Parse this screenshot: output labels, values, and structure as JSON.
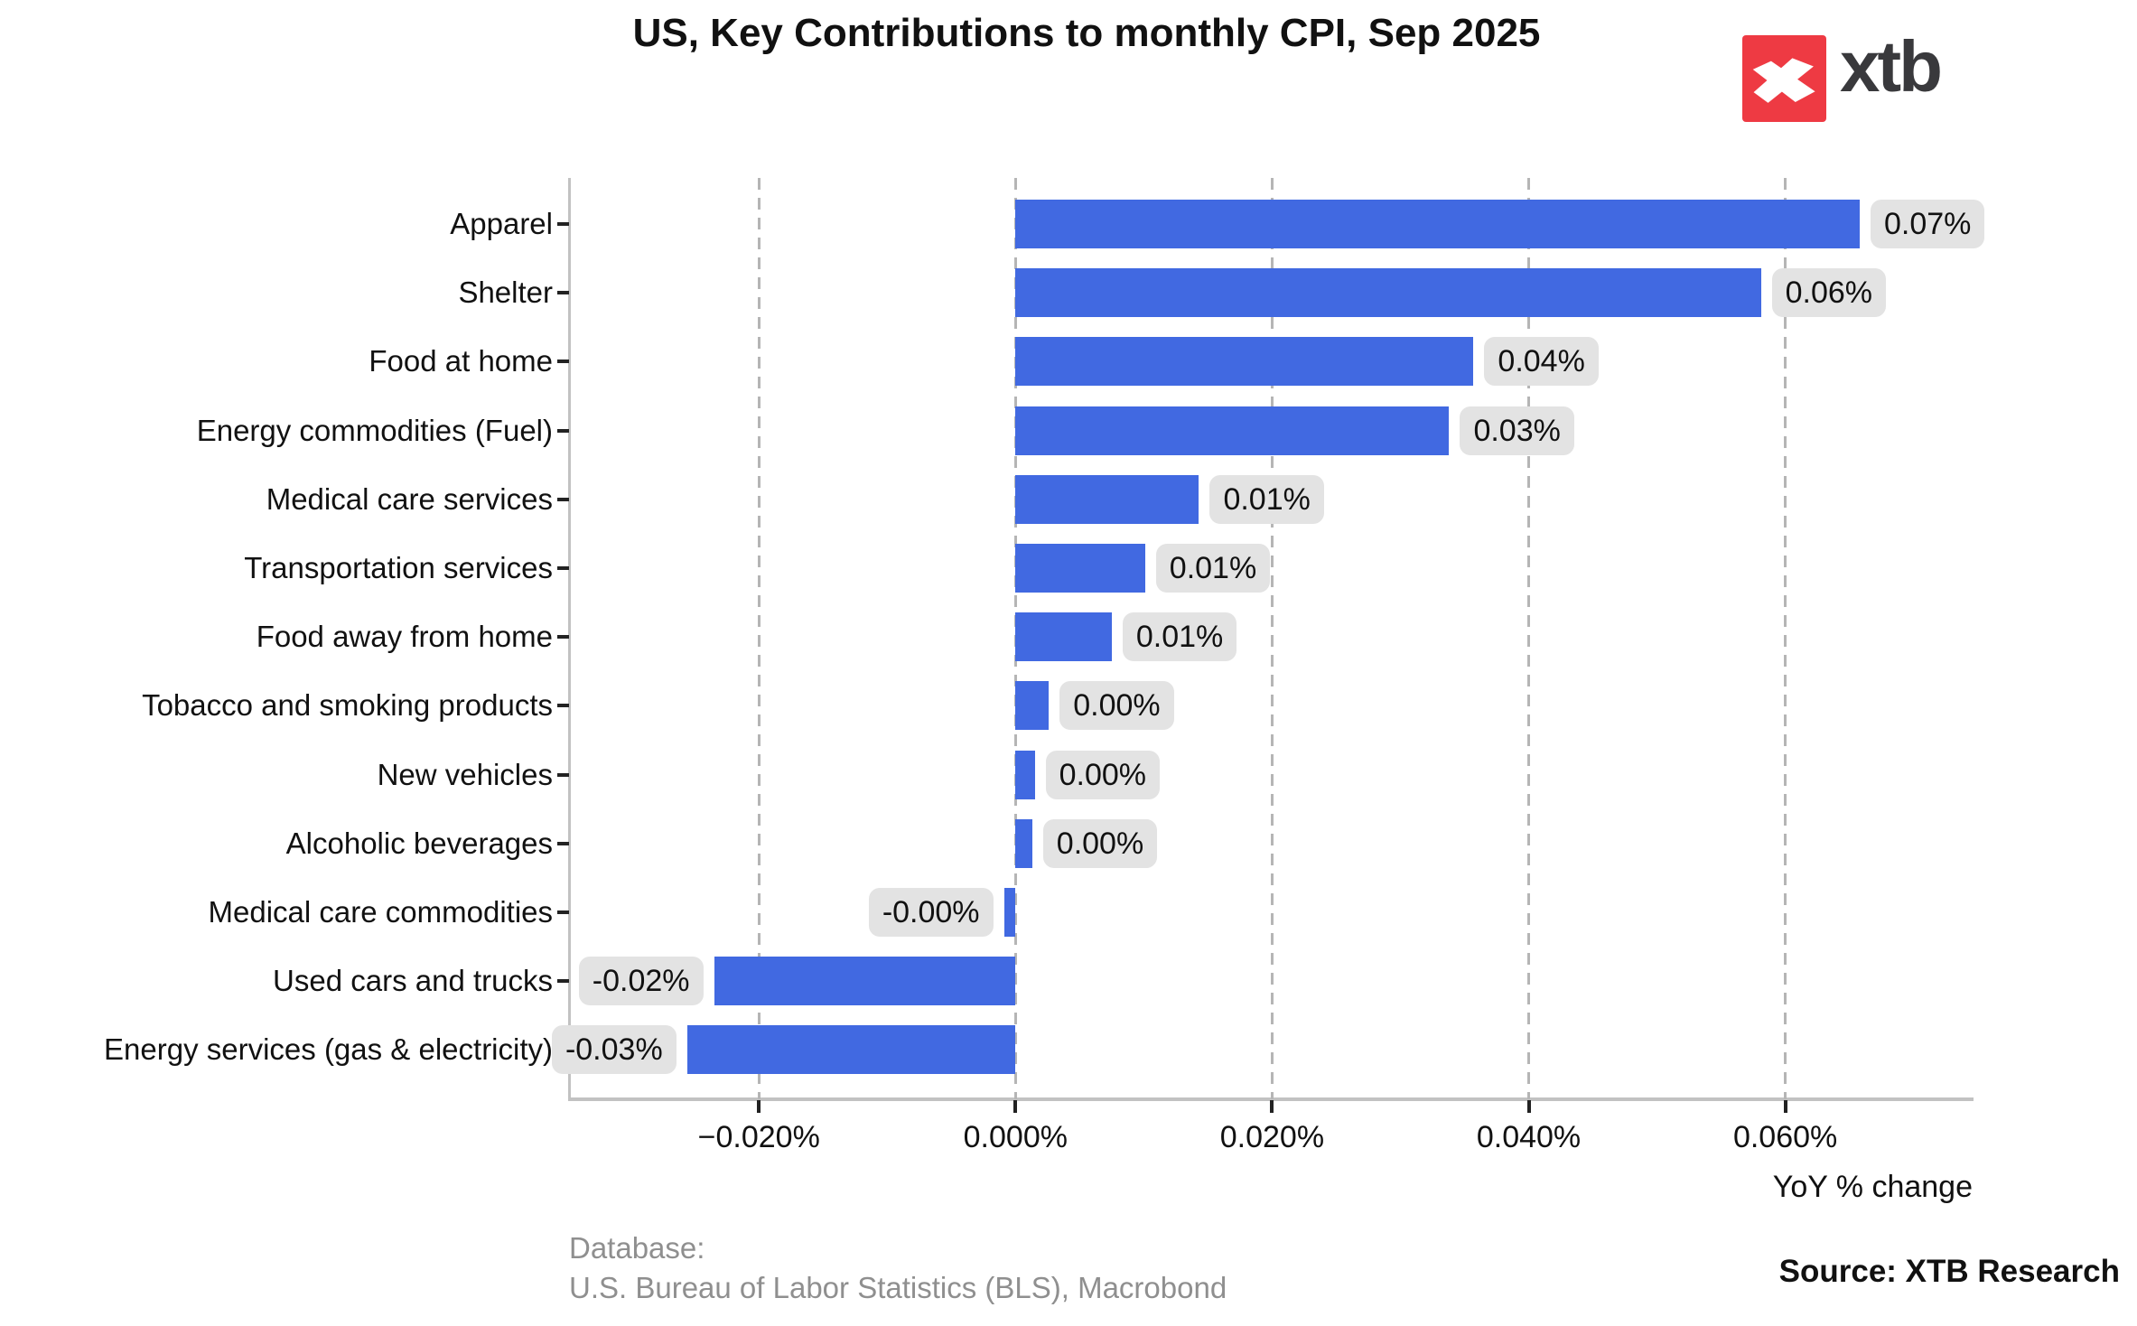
{
  "title": "US, Key Contributions to monthly CPI, Sep 2025",
  "logo": {
    "text": "xtb",
    "icon": "x-mark-icon",
    "red": "#ee3a43",
    "text_color": "#39393c"
  },
  "chart_data": {
    "type": "bar",
    "orientation": "horizontal",
    "title": "US, Key Contributions to monthly CPI, Sep 2025",
    "categories": [
      "Apparel",
      "Shelter",
      "Food at home",
      "Energy commodities (Fuel)",
      "Medical care services",
      "Transportation services",
      "Food away from home",
      "Tobacco and smoking products",
      "New vehicles",
      "Alcoholic beverages",
      "Medical care commodities",
      "Used cars and trucks",
      "Energy services (gas & electricity)"
    ],
    "values": [
      0.0658,
      0.0581,
      0.0357,
      0.0338,
      0.0143,
      0.0101,
      0.0075,
      0.0026,
      0.0015,
      0.0013,
      -0.0009,
      -0.0235,
      -0.0256
    ],
    "bar_labels": [
      "0.07%",
      "0.06%",
      "0.04%",
      "0.03%",
      "0.01%",
      "0.01%",
      "0.01%",
      "0.00%",
      "0.00%",
      "0.00%",
      "-0.00%",
      "-0.02%",
      "-0.03%"
    ],
    "x_ticks": {
      "values": [
        -0.02,
        0.0,
        0.02,
        0.04,
        0.06
      ],
      "labels": [
        "−0.020%",
        "0.000%",
        "0.020%",
        "0.040%",
        "0.060%"
      ]
    },
    "xlim": [
      -0.0348,
      0.0746
    ],
    "xlabel": "YoY % change",
    "grid": "vertical-dashed",
    "bar_color": "#4169e1",
    "label_box_bg": "#e3e3e3",
    "grid_color": "#b5b5b5",
    "axis_color": "#c2c2c2"
  },
  "footer": {
    "database_line1": "Database:",
    "database_line2": "U.S. Bureau of Labor Statistics (BLS), Macrobond",
    "source": "Source: XTB Research"
  }
}
